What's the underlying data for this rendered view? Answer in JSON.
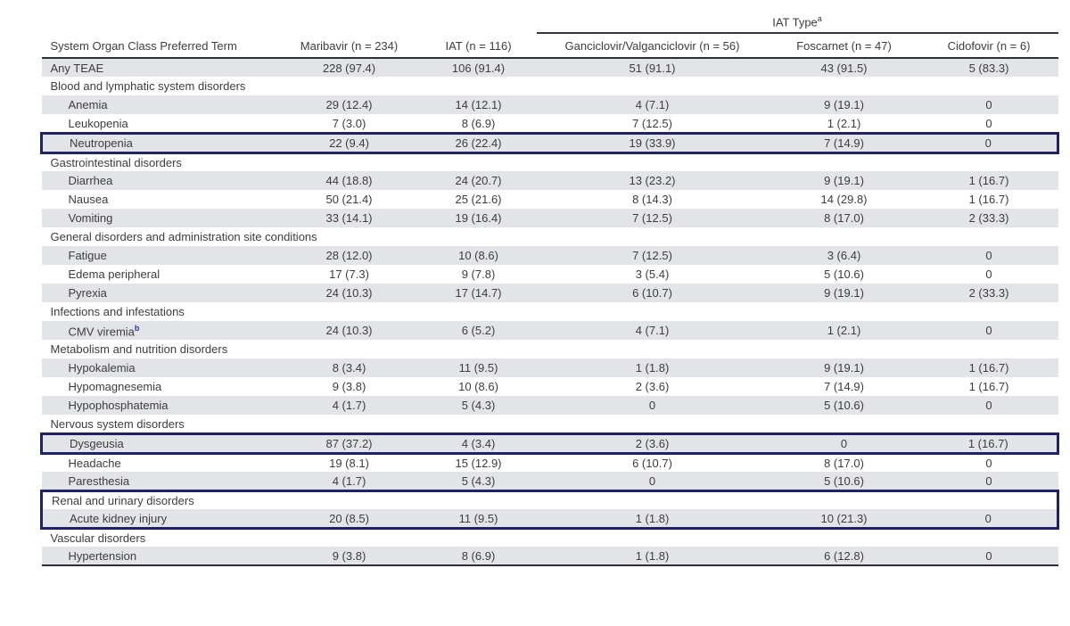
{
  "table": {
    "span_header": {
      "label": "IAT Type",
      "superscript": "a"
    },
    "columns": [
      "System Organ Class Preferred Term",
      "Maribavir (n = 234)",
      "IAT (n = 116)",
      "Ganciclovir/Valganciclovir (n = 56)",
      "Foscarnet (n = 47)",
      "Cidofovir (n = 6)"
    ],
    "colors": {
      "row_shading": "#e3e4e8",
      "highlight_box": "#1f2366",
      "text": "#3d3d3d",
      "rule": "#2e2e38",
      "footnote_marker_blue": "#2b3990"
    },
    "rows": [
      {
        "type": "data",
        "indent": false,
        "shaded": true,
        "label": "Any TEAE",
        "values": [
          "228 (97.4)",
          "106 (91.4)",
          "51 (91.1)",
          "43 (91.5)",
          "5 (83.3)"
        ]
      },
      {
        "type": "section",
        "shaded": false,
        "label": "Blood and lymphatic system disorders"
      },
      {
        "type": "data",
        "indent": true,
        "shaded": true,
        "label": "Anemia",
        "values": [
          "29 (12.4)",
          "14 (12.1)",
          "4 (7.1)",
          "9 (19.1)",
          "0"
        ]
      },
      {
        "type": "data",
        "indent": true,
        "shaded": false,
        "label": "Leukopenia",
        "values": [
          "7 (3.0)",
          "8 (6.9)",
          "7 (12.5)",
          "1 (2.1)",
          "0"
        ]
      },
      {
        "type": "data",
        "indent": true,
        "shaded": true,
        "box": "single",
        "label": "Neutropenia",
        "values": [
          "22 (9.4)",
          "26 (22.4)",
          "19 (33.9)",
          "7 (14.9)",
          "0"
        ]
      },
      {
        "type": "section",
        "shaded": false,
        "label": "Gastrointestinal disorders"
      },
      {
        "type": "data",
        "indent": true,
        "shaded": true,
        "label": "Diarrhea",
        "values": [
          "44 (18.8)",
          "24 (20.7)",
          "13 (23.2)",
          "9 (19.1)",
          "1 (16.7)"
        ]
      },
      {
        "type": "data",
        "indent": true,
        "shaded": false,
        "label": "Nausea",
        "values": [
          "50 (21.4)",
          "25 (21.6)",
          "8 (14.3)",
          "14 (29.8)",
          "1 (16.7)"
        ]
      },
      {
        "type": "data",
        "indent": true,
        "shaded": true,
        "label": "Vomiting",
        "values": [
          "33 (14.1)",
          "19 (16.4)",
          "7 (12.5)",
          "8 (17.0)",
          "2 (33.3)"
        ]
      },
      {
        "type": "section",
        "shaded": false,
        "label": "General disorders and administration site conditions"
      },
      {
        "type": "data",
        "indent": true,
        "shaded": true,
        "label": "Fatigue",
        "values": [
          "28 (12.0)",
          "10 (8.6)",
          "7 (12.5)",
          "3 (6.4)",
          "0"
        ]
      },
      {
        "type": "data",
        "indent": true,
        "shaded": false,
        "label": "Edema peripheral",
        "values": [
          "17 (7.3)",
          "9 (7.8)",
          "3 (5.4)",
          "5 (10.6)",
          "0"
        ]
      },
      {
        "type": "data",
        "indent": true,
        "shaded": true,
        "label": "Pyrexia",
        "values": [
          "24 (10.3)",
          "17 (14.7)",
          "6 (10.7)",
          "9 (19.1)",
          "2 (33.3)"
        ]
      },
      {
        "type": "section",
        "shaded": false,
        "label": "Infections and infestations"
      },
      {
        "type": "data",
        "indent": true,
        "shaded": true,
        "label": "CMV viremia",
        "superscript": "b",
        "values": [
          "24 (10.3)",
          "6 (5.2)",
          "4 (7.1)",
          "1 (2.1)",
          "0"
        ]
      },
      {
        "type": "section",
        "shaded": false,
        "label": "Metabolism and nutrition disorders"
      },
      {
        "type": "data",
        "indent": true,
        "shaded": true,
        "label": "Hypokalemia",
        "values": [
          "8 (3.4)",
          "11 (9.5)",
          "1 (1.8)",
          "9 (19.1)",
          "1 (16.7)"
        ]
      },
      {
        "type": "data",
        "indent": true,
        "shaded": false,
        "label": "Hypomagnesemia",
        "values": [
          "9 (3.8)",
          "10 (8.6)",
          "2 (3.6)",
          "7 (14.9)",
          "1 (16.7)"
        ]
      },
      {
        "type": "data",
        "indent": true,
        "shaded": true,
        "label": "Hypophosphatemia",
        "values": [
          "4 (1.7)",
          "5 (4.3)",
          "0",
          "5 (10.6)",
          "0"
        ]
      },
      {
        "type": "section",
        "shaded": false,
        "label": "Nervous system disorders"
      },
      {
        "type": "data",
        "indent": true,
        "shaded": true,
        "box": "single",
        "label": "Dysgeusia",
        "values": [
          "87 (37.2)",
          "4 (3.4)",
          "2 (3.6)",
          "0",
          "1 (16.7)"
        ]
      },
      {
        "type": "data",
        "indent": true,
        "shaded": false,
        "label": "Headache",
        "values": [
          "19 (8.1)",
          "15 (12.9)",
          "6 (10.7)",
          "8 (17.0)",
          "0"
        ]
      },
      {
        "type": "data",
        "indent": true,
        "shaded": true,
        "label": "Paresthesia",
        "values": [
          "4 (1.7)",
          "5 (4.3)",
          "0",
          "5 (10.6)",
          "0"
        ]
      },
      {
        "type": "section",
        "shaded": false,
        "box": "start",
        "label": "Renal and urinary disorders"
      },
      {
        "type": "data",
        "indent": true,
        "shaded": true,
        "box": "end",
        "label": "Acute kidney injury",
        "values": [
          "20 (8.5)",
          "11 (9.5)",
          "1 (1.8)",
          "10 (21.3)",
          "0"
        ]
      },
      {
        "type": "section",
        "shaded": false,
        "label": "Vascular disorders"
      },
      {
        "type": "data",
        "indent": true,
        "shaded": true,
        "last": true,
        "label": "Hypertension",
        "values": [
          "9 (3.8)",
          "8 (6.9)",
          "1 (1.8)",
          "6 (12.8)",
          "0"
        ]
      }
    ]
  }
}
